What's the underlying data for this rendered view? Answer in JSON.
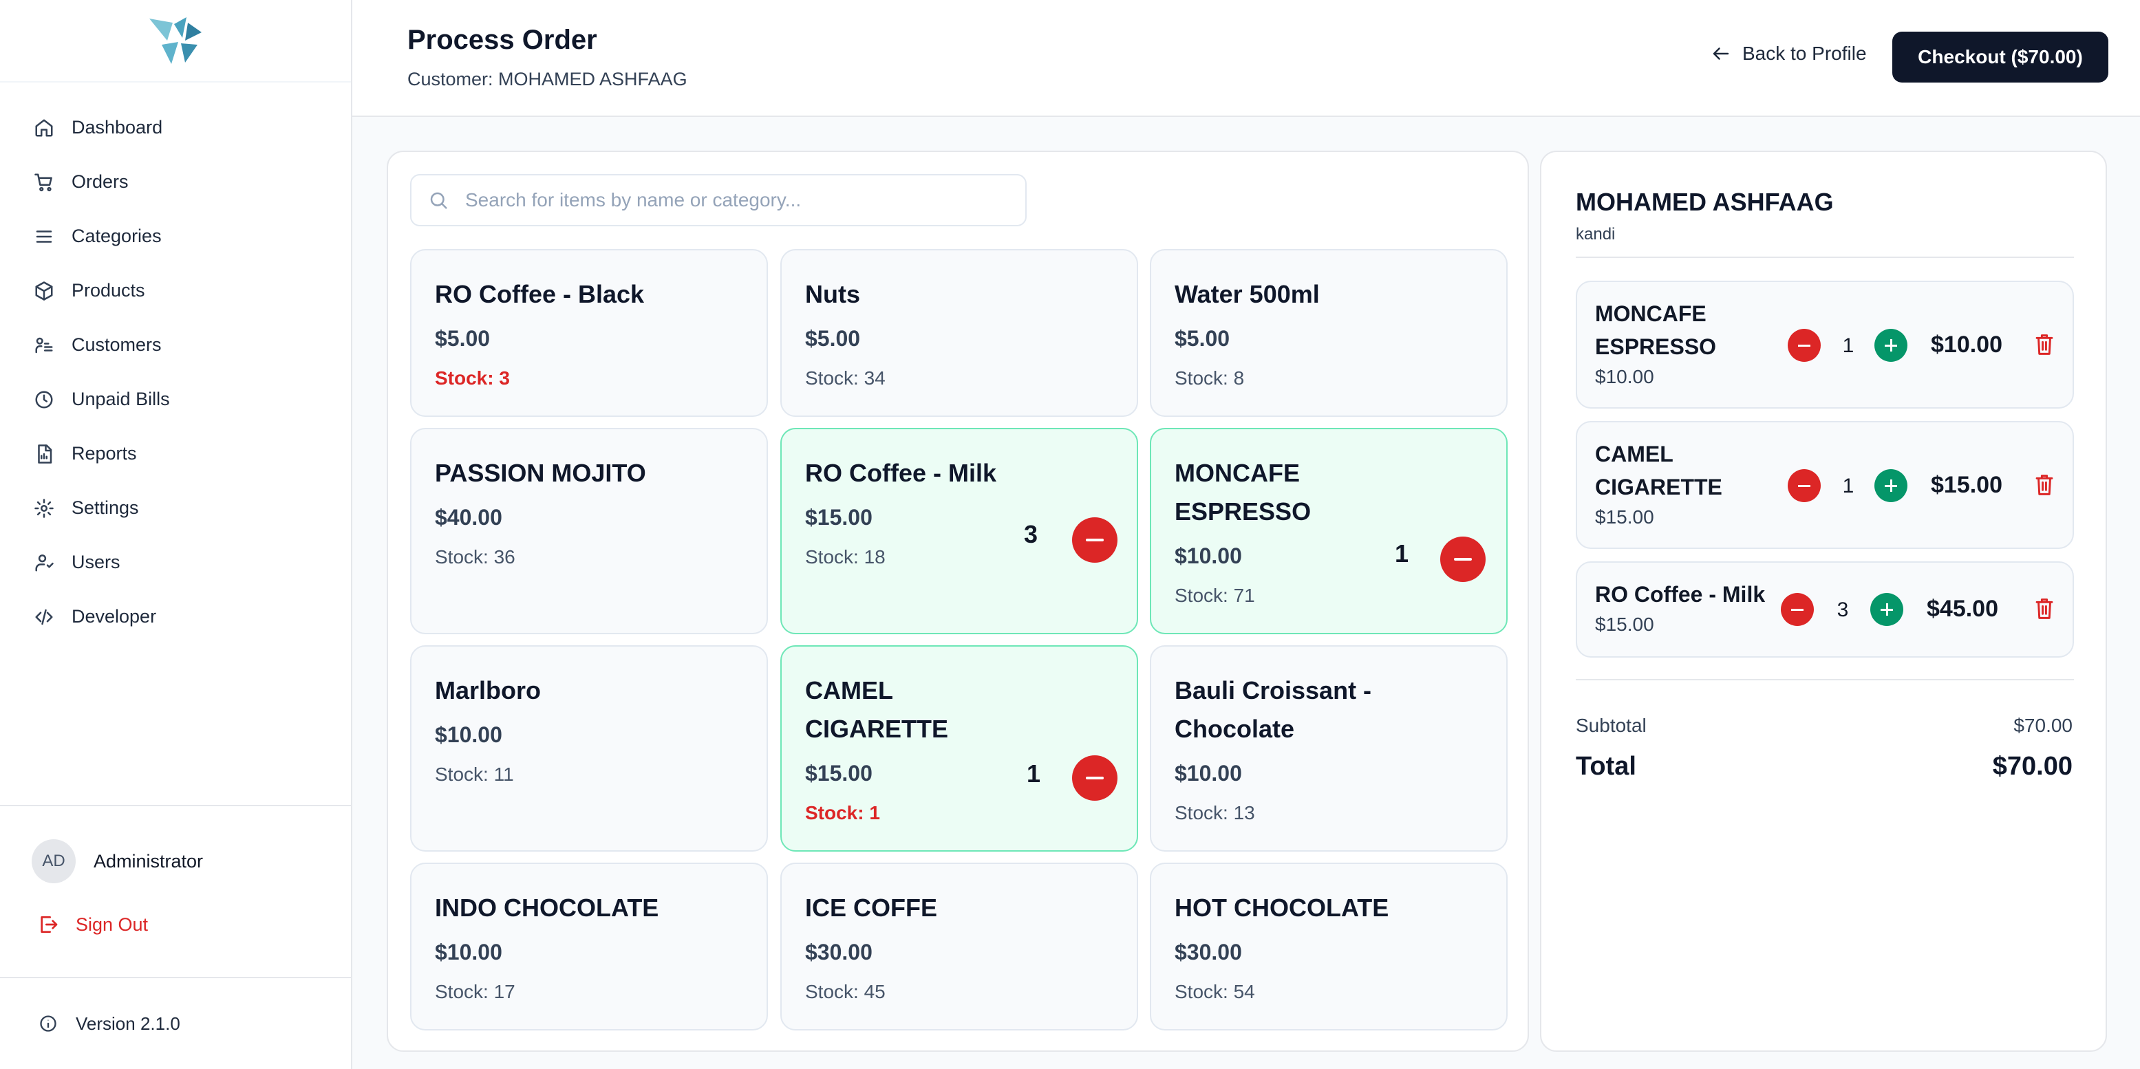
{
  "nav": {
    "items": [
      {
        "label": "Dashboard",
        "icon": "home-icon"
      },
      {
        "label": "Orders",
        "icon": "cart-icon"
      },
      {
        "label": "Categories",
        "icon": "list-icon"
      },
      {
        "label": "Products",
        "icon": "box-icon"
      },
      {
        "label": "Customers",
        "icon": "customers-icon"
      },
      {
        "label": "Unpaid Bills",
        "icon": "clock-icon"
      },
      {
        "label": "Reports",
        "icon": "report-icon"
      },
      {
        "label": "Settings",
        "icon": "gear-icon"
      },
      {
        "label": "Users",
        "icon": "users-icon"
      },
      {
        "label": "Developer",
        "icon": "code-icon"
      }
    ]
  },
  "user": {
    "initials": "AD",
    "name": "Administrator",
    "sign_out": "Sign Out"
  },
  "version": "Version 2.1.0",
  "header": {
    "title": "Process Order",
    "customer_line": "Customer: MOHAMED ASHFAAG",
    "back_label": "Back to Profile",
    "checkout_label": "Checkout ($70.00)"
  },
  "search": {
    "placeholder": "Search for items by name or category...",
    "value": ""
  },
  "products": [
    {
      "name": "RO Coffee - Black",
      "price": "$5.00",
      "stock": "Stock: 3",
      "low": true,
      "qty": ""
    },
    {
      "name": "Nuts",
      "price": "$5.00",
      "stock": "Stock: 34",
      "low": false,
      "qty": ""
    },
    {
      "name": "Water 500ml",
      "price": "$5.00",
      "stock": "Stock: 8",
      "low": false,
      "qty": ""
    },
    {
      "name": "PASSION MOJITO",
      "price": "$40.00",
      "stock": "Stock: 36",
      "low": false,
      "qty": ""
    },
    {
      "name": "RO Coffee - Milk",
      "price": "$15.00",
      "stock": "Stock: 18",
      "low": false,
      "qty": "3"
    },
    {
      "name": "MONCAFE ESPRESSO",
      "price": "$10.00",
      "stock": "Stock: 71",
      "low": false,
      "qty": "1"
    },
    {
      "name": "Marlboro",
      "price": "$10.00",
      "stock": "Stock: 11",
      "low": false,
      "qty": ""
    },
    {
      "name": "CAMEL CIGARETTE",
      "price": "$15.00",
      "stock": "Stock: 1",
      "low": true,
      "qty": "1"
    },
    {
      "name": "Bauli Croissant - Chocolate",
      "price": "$10.00",
      "stock": "Stock: 13",
      "low": false,
      "qty": ""
    },
    {
      "name": "INDO CHOCOLATE",
      "price": "$10.00",
      "stock": "Stock: 17",
      "low": false,
      "qty": ""
    },
    {
      "name": "ICE COFFE",
      "price": "$30.00",
      "stock": "Stock: 45",
      "low": false,
      "qty": ""
    },
    {
      "name": "HOT CHOCOLATE",
      "price": "$30.00",
      "stock": "Stock: 54",
      "low": false,
      "qty": ""
    }
  ],
  "order": {
    "customer_name": "MOHAMED ASHFAAG",
    "customer_note": "kandi",
    "lines": [
      {
        "name": "MONCAFE ESPRESSO",
        "unit_price": "$10.00",
        "qty": "1",
        "total": "$10.00"
      },
      {
        "name": "CAMEL CIGARETTE",
        "unit_price": "$15.00",
        "qty": "1",
        "total": "$15.00"
      },
      {
        "name": "RO Coffee - Milk",
        "unit_price": "$15.00",
        "qty": "3",
        "total": "$45.00"
      }
    ],
    "subtotal_label": "Subtotal",
    "subtotal": "$70.00",
    "total_label": "Total",
    "total": "$70.00"
  },
  "colors": {
    "accent_dark": "#0f172a",
    "danger": "#dc2626",
    "success": "#059669",
    "selected_bg": "#ecfdf5",
    "selected_border": "#6ee7b7"
  }
}
